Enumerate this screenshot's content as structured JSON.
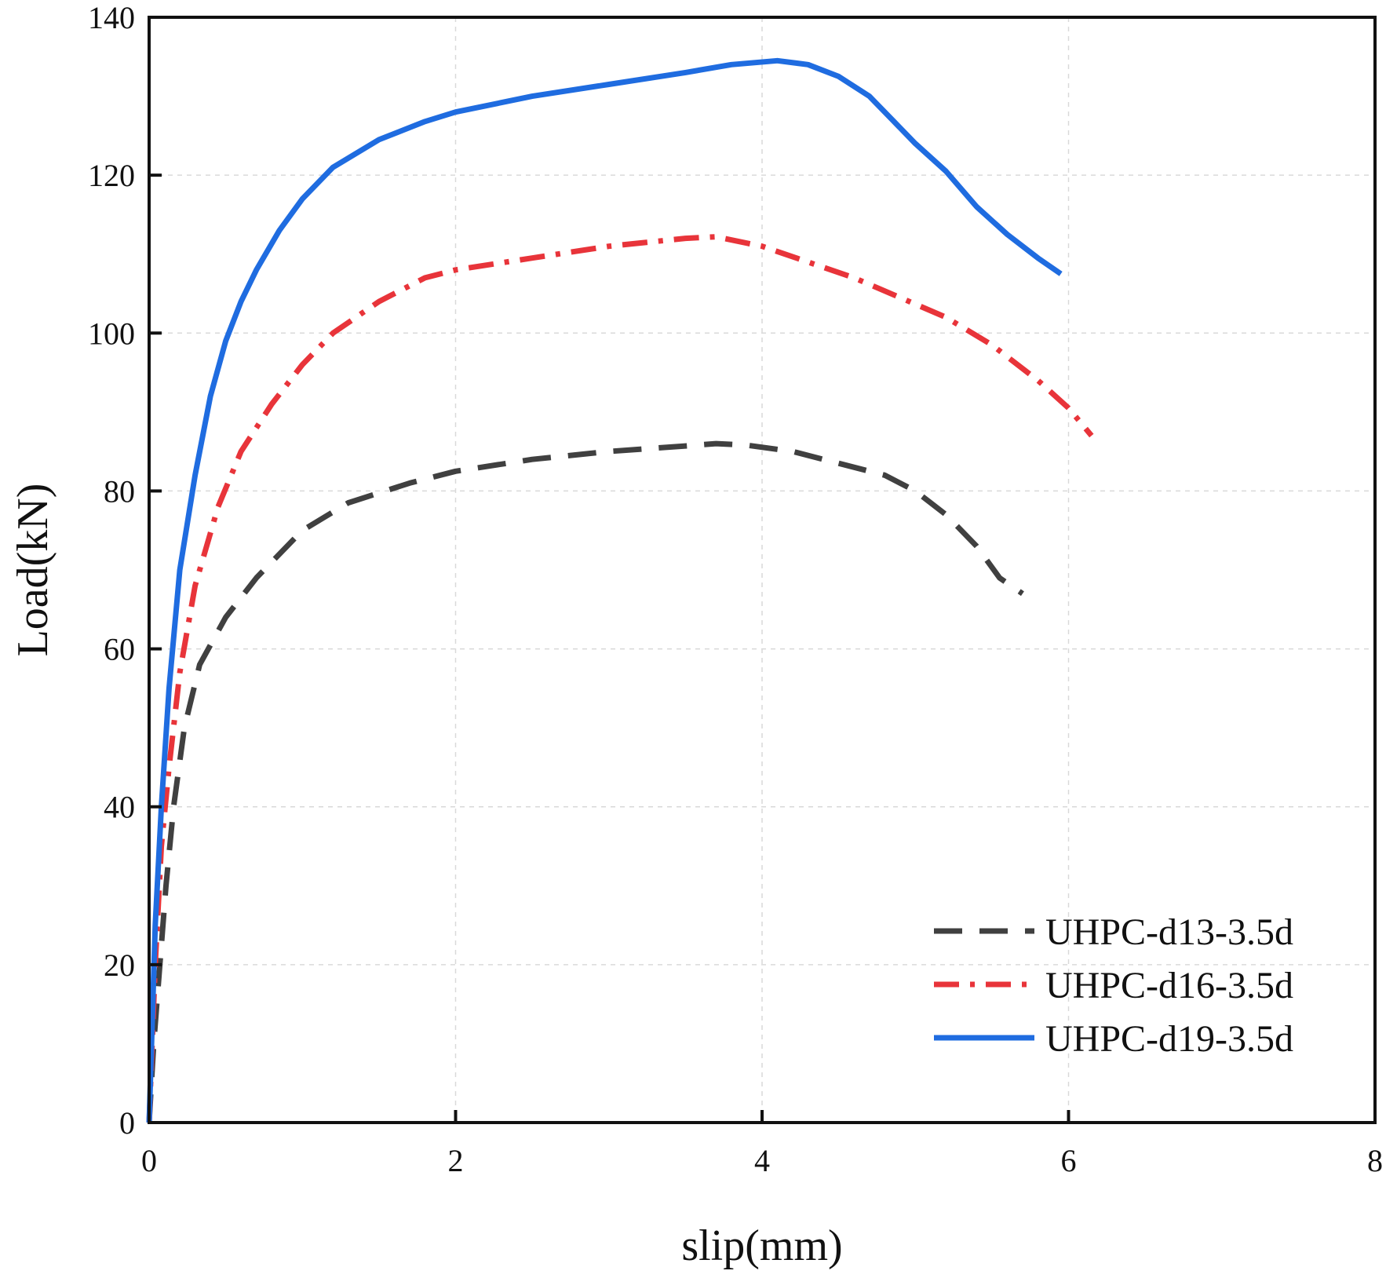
{
  "chart_data": {
    "type": "line",
    "title": "",
    "xlabel": "slip(mm)",
    "ylabel": "Load(kN)",
    "xlim": [
      0,
      8
    ],
    "ylim": [
      0,
      140
    ],
    "xticks": [
      0,
      2,
      4,
      6,
      8
    ],
    "yticks": [
      0,
      20,
      40,
      60,
      80,
      100,
      120,
      140
    ],
    "grid": true,
    "legend_position": "bottom-right",
    "series": [
      {
        "name": "UHPC-d13-3.5d",
        "color": "#404040",
        "style": "dashed",
        "points": [
          [
            0,
            0
          ],
          [
            0.03,
            10
          ],
          [
            0.07,
            20
          ],
          [
            0.11,
            30
          ],
          [
            0.16,
            40
          ],
          [
            0.23,
            50
          ],
          [
            0.33,
            58
          ],
          [
            0.5,
            64
          ],
          [
            0.7,
            69
          ],
          [
            1.0,
            75
          ],
          [
            1.3,
            78.5
          ],
          [
            1.7,
            81
          ],
          [
            2.0,
            82.5
          ],
          [
            2.5,
            84
          ],
          [
            3.0,
            85
          ],
          [
            3.5,
            85.7
          ],
          [
            3.7,
            86
          ],
          [
            3.9,
            85.8
          ],
          [
            4.2,
            85
          ],
          [
            4.5,
            83.5
          ],
          [
            4.8,
            82
          ],
          [
            5.0,
            80
          ],
          [
            5.2,
            77
          ],
          [
            5.4,
            73
          ],
          [
            5.55,
            69
          ],
          [
            5.7,
            67
          ]
        ]
      },
      {
        "name": "UHPC-d16-3.5d",
        "color": "#e8343a",
        "style": "dash-dot",
        "points": [
          [
            0,
            0
          ],
          [
            0.04,
            20
          ],
          [
            0.08,
            35
          ],
          [
            0.13,
            45
          ],
          [
            0.2,
            57
          ],
          [
            0.3,
            68
          ],
          [
            0.45,
            78
          ],
          [
            0.6,
            85
          ],
          [
            0.8,
            91
          ],
          [
            1.0,
            96
          ],
          [
            1.2,
            100
          ],
          [
            1.5,
            104
          ],
          [
            1.8,
            107
          ],
          [
            2.0,
            108
          ],
          [
            2.5,
            109.5
          ],
          [
            3.0,
            111
          ],
          [
            3.5,
            112
          ],
          [
            3.7,
            112.2
          ],
          [
            4.0,
            111
          ],
          [
            4.3,
            109
          ],
          [
            4.6,
            107
          ],
          [
            4.9,
            104.5
          ],
          [
            5.2,
            102
          ],
          [
            5.5,
            98.5
          ],
          [
            5.8,
            94
          ],
          [
            6.0,
            90.5
          ],
          [
            6.15,
            87
          ]
        ]
      },
      {
        "name": "UHPC-d19-3.5d",
        "color": "#1f6ce0",
        "style": "solid",
        "points": [
          [
            0,
            0
          ],
          [
            0.04,
            25
          ],
          [
            0.08,
            40
          ],
          [
            0.13,
            55
          ],
          [
            0.2,
            70
          ],
          [
            0.3,
            82
          ],
          [
            0.4,
            92
          ],
          [
            0.5,
            99
          ],
          [
            0.6,
            104
          ],
          [
            0.7,
            108
          ],
          [
            0.85,
            113
          ],
          [
            1.0,
            117
          ],
          [
            1.2,
            121
          ],
          [
            1.5,
            124.5
          ],
          [
            1.8,
            126.8
          ],
          [
            2.0,
            128
          ],
          [
            2.5,
            130
          ],
          [
            3.0,
            131.5
          ],
          [
            3.5,
            133
          ],
          [
            3.8,
            134
          ],
          [
            4.1,
            134.5
          ],
          [
            4.3,
            134
          ],
          [
            4.5,
            132.5
          ],
          [
            4.7,
            130
          ],
          [
            4.85,
            127
          ],
          [
            5.0,
            124
          ],
          [
            5.2,
            120.5
          ],
          [
            5.4,
            116
          ],
          [
            5.6,
            112.5
          ],
          [
            5.8,
            109.5
          ],
          [
            5.95,
            107.5
          ]
        ]
      }
    ]
  }
}
